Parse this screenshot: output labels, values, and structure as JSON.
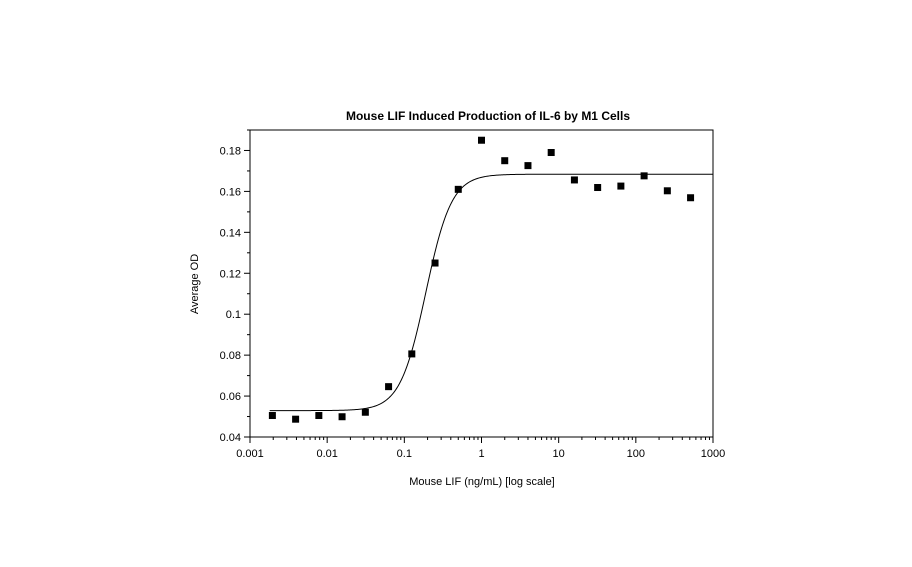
{
  "chart_data": {
    "type": "scatter",
    "title": "Mouse LIF Induced Production of IL-6 by M1 Cells",
    "xlabel": "Mouse LIF (ng/mL) [log scale]",
    "ylabel": "Average OD",
    "xscale": "log",
    "xlim": [
      0.001,
      1000
    ],
    "ylim": [
      0.04,
      0.19
    ],
    "x_ticks": [
      0.001,
      0.01,
      0.1,
      1,
      10,
      100,
      1000
    ],
    "x_tick_labels": [
      "0.001",
      "0.01",
      "0.1",
      "1",
      "10",
      "100",
      "1000"
    ],
    "y_ticks": [
      0.04,
      0.06,
      0.08,
      0.1,
      0.12,
      0.14,
      0.16,
      0.18
    ],
    "y_tick_labels": [
      "0.04",
      "0.06",
      "0.08",
      "0.1",
      "0.12",
      "0.14",
      "0.16",
      "0.18"
    ],
    "grid": false,
    "legend": "none",
    "marker_color": "#000000",
    "line_color": "#000000",
    "series": [
      {
        "marker": "square",
        "x": [
          0.00195,
          0.0039,
          0.0078,
          0.0156,
          0.03125,
          0.0625,
          0.125,
          0.25,
          0.5,
          1,
          2,
          4,
          8,
          16,
          32,
          64,
          128,
          256,
          512
        ],
        "y": [
          0.0505,
          0.0487,
          0.0505,
          0.0499,
          0.0521,
          0.0646,
          0.0806,
          0.125,
          0.161,
          0.185,
          0.175,
          0.1726,
          0.179,
          0.1656,
          0.1619,
          0.1626,
          0.1676,
          0.1603,
          0.1569
        ]
      }
    ],
    "fit_curve": {
      "model": "4PL",
      "bottom": 0.0529,
      "top": 0.1684,
      "ec50": 0.19,
      "hill": 2.6
    }
  }
}
